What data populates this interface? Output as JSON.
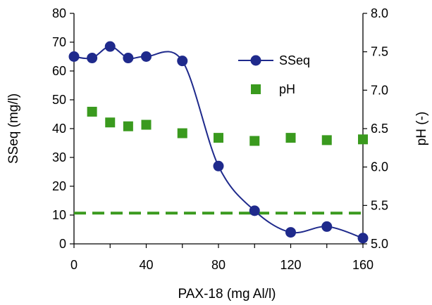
{
  "chart_data": {
    "type": "scatter",
    "title": "",
    "xlabel": "PAX-18 (mg Al/l)",
    "ylabel_left": "SSeq (mg/l)",
    "ylabel_right": "pH (-)",
    "xlim": [
      0,
      160
    ],
    "ylim_left": [
      0,
      80
    ],
    "ylim_right": [
      5.0,
      8.0
    ],
    "x_ticks": [
      "0",
      "40",
      "80",
      "120",
      "160"
    ],
    "y_left_ticks": [
      "0",
      "10",
      "20",
      "30",
      "40",
      "50",
      "60",
      "70",
      "80"
    ],
    "y_right_ticks": [
      "5.0",
      "5.5",
      "6.0",
      "6.5",
      "7.0",
      "7.5",
      "8.0"
    ],
    "grid": false,
    "legend_position": "top-right-inside",
    "series": [
      {
        "name": "SSeq",
        "axis": "left",
        "style": "smooth-line-with-circle-markers",
        "color": "#1f2a8c",
        "x": [
          0,
          10,
          20,
          30,
          40,
          60,
          80,
          100,
          120,
          140,
          160
        ],
        "values": [
          65,
          64.5,
          68.5,
          64.5,
          65,
          63.5,
          27,
          11.5,
          4,
          6,
          2
        ]
      },
      {
        "name": "pH",
        "axis": "right",
        "style": "square-markers",
        "color": "#3a9a1e",
        "x": [
          10,
          20,
          30,
          40,
          60,
          80,
          100,
          120,
          140,
          160
        ],
        "values": [
          6.72,
          6.58,
          6.53,
          6.55,
          6.44,
          6.38,
          6.34,
          6.38,
          6.35,
          6.36
        ]
      }
    ],
    "reference_line": {
      "axis": "right",
      "value": 5.4,
      "style": "dashed",
      "color": "#3a9a1e"
    }
  }
}
